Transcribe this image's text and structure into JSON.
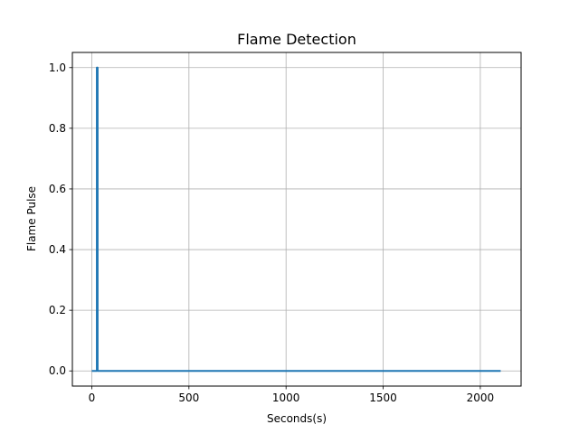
{
  "chart_data": {
    "type": "line",
    "title": "Flame Detection",
    "xlabel": "Seconds(s)",
    "ylabel": "Flame Pulse",
    "xlim": [
      -100,
      2210
    ],
    "ylim": [
      -0.05,
      1.05
    ],
    "xticks": [
      0,
      500,
      1000,
      1500,
      2000
    ],
    "yticks": [
      0.0,
      0.2,
      0.4,
      0.6,
      0.8,
      1.0
    ],
    "xtick_labels": [
      "0",
      "500",
      "1000",
      "1500",
      "2000"
    ],
    "ytick_labels": [
      "0.0",
      "0.2",
      "0.4",
      "0.6",
      "0.8",
      "1.0"
    ],
    "grid": true,
    "color": "#1f77b4",
    "series": [
      {
        "x": [
          0,
          26,
          26,
          30,
          30,
          2105
        ],
        "y": [
          0,
          0,
          1,
          1,
          0,
          0
        ]
      }
    ]
  }
}
